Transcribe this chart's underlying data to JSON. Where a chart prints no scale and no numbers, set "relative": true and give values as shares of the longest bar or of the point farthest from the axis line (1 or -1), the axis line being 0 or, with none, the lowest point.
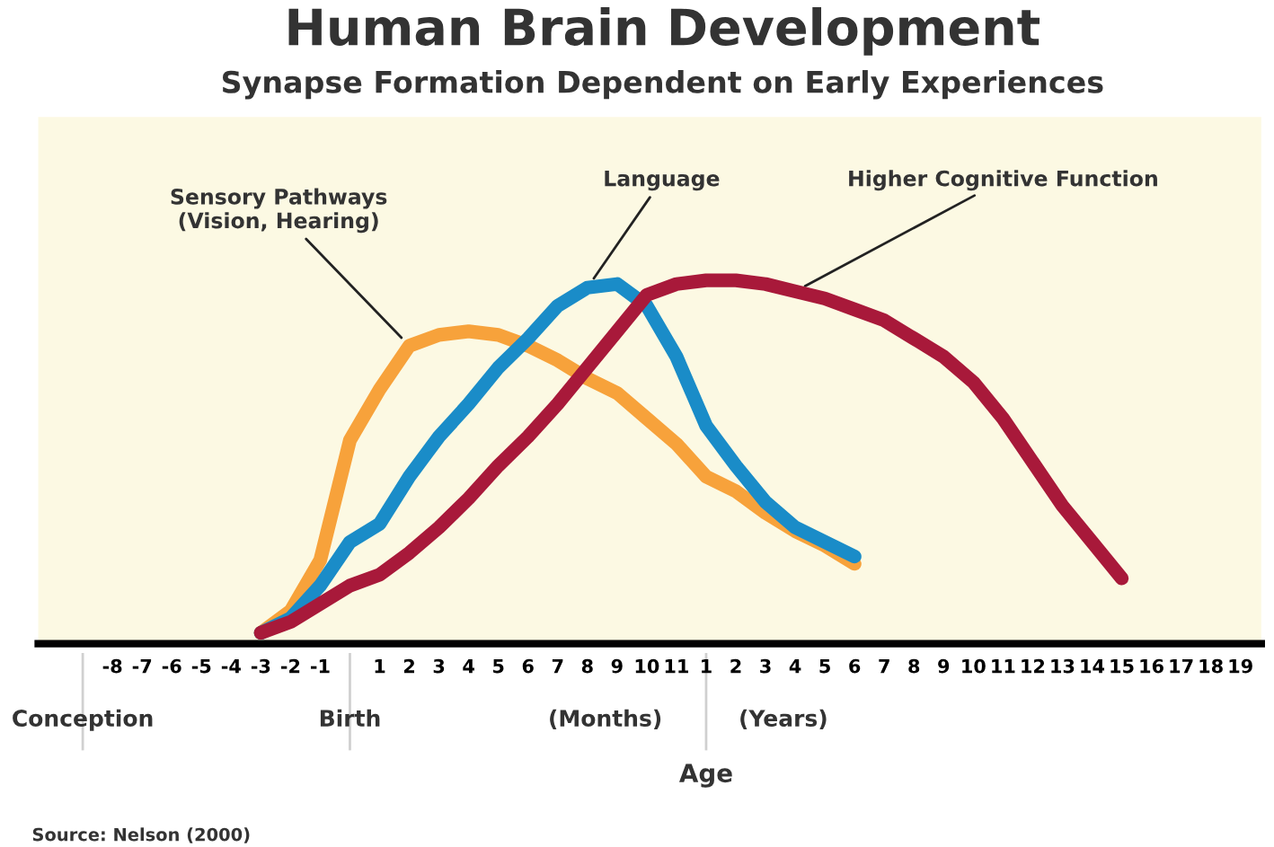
{
  "chart_data": {
    "type": "line",
    "title": "Human Brain Development",
    "subtitle": "Synapse Formation Dependent on Early Experiences",
    "xlabel": "Age",
    "relative": true,
    "grid": false,
    "legend": false,
    "line_style": "solid",
    "tick_labels": "x",
    "categories": [
      null,
      "-8",
      "-7",
      "-6",
      "-5",
      "-4",
      "-3",
      "-2",
      "-1",
      null,
      "1",
      "2",
      "3",
      "4",
      "5",
      "6",
      "7",
      "8",
      "9",
      "10",
      "11",
      "1",
      "2",
      "3",
      "4",
      "5",
      "6",
      "7",
      "8",
      "9",
      "10",
      "11",
      "12",
      "13",
      "14",
      "15",
      "16",
      "17",
      "18",
      "19"
    ],
    "series": [
      {
        "name": "Sensory Pathways\n(Vision, Hearing)",
        "color": "#f7a23b",
        "values": [
          null,
          null,
          null,
          null,
          null,
          null,
          0.03,
          0.09,
          0.23,
          0.56,
          0.7,
          0.82,
          0.85,
          0.86,
          0.85,
          0.82,
          0.78,
          0.73,
          0.69,
          0.62,
          0.55,
          0.46,
          0.42,
          0.36,
          0.31,
          0.27,
          0.22,
          null,
          null,
          null,
          null,
          null,
          null,
          null,
          null,
          null,
          null,
          null,
          null,
          null
        ]
      },
      {
        "name": "Language",
        "color": "#1a8cc8",
        "values": [
          null,
          null,
          null,
          null,
          null,
          null,
          0.03,
          0.07,
          0.16,
          0.28,
          0.33,
          0.46,
          0.57,
          0.66,
          0.76,
          0.84,
          0.93,
          0.98,
          0.99,
          0.93,
          0.79,
          0.6,
          0.49,
          0.39,
          0.32,
          0.28,
          0.24,
          null,
          null,
          null,
          null,
          null,
          null,
          null,
          null,
          null,
          null,
          null,
          null,
          null
        ]
      },
      {
        "name": "Higher Cognitive Function",
        "color": "#a8193a",
        "values": [
          null,
          null,
          null,
          null,
          null,
          null,
          0.03,
          0.06,
          0.11,
          0.16,
          0.19,
          0.25,
          0.32,
          0.4,
          0.49,
          0.57,
          0.66,
          0.76,
          0.86,
          0.96,
          0.99,
          1.0,
          1.0,
          0.99,
          0.97,
          0.95,
          0.92,
          0.89,
          0.84,
          0.79,
          0.72,
          0.62,
          0.5,
          0.38,
          0.28,
          0.18,
          null,
          null,
          null,
          null
        ]
      }
    ],
    "annotations": [
      "Conception",
      "Birth",
      "(Months)",
      "(Years)",
      "Source: Nelson (2000)"
    ]
  }
}
